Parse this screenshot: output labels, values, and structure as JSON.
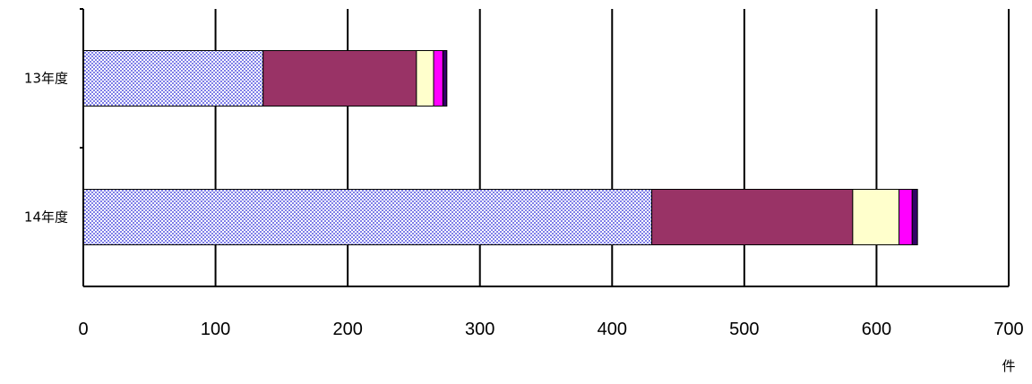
{
  "chart_data": {
    "type": "bar",
    "orientation": "horizontal",
    "stacked": true,
    "categories": [
      "13年度",
      "14年度"
    ],
    "series": [
      {
        "values": [
          136,
          430
        ],
        "color": "#9999ff",
        "pattern": "checker"
      },
      {
        "values": [
          116,
          152
        ],
        "color": "#993366"
      },
      {
        "values": [
          13,
          35
        ],
        "color": "#ffffcc"
      },
      {
        "values": [
          7,
          10
        ],
        "color": "#ff00ff"
      },
      {
        "values": [
          3,
          4
        ],
        "color": "#330066"
      }
    ],
    "xlim": [
      0,
      700
    ],
    "x_ticks": [
      "0",
      "100",
      "200",
      "300",
      "400",
      "500",
      "600",
      "700"
    ],
    "xlabel": "件",
    "grid": true,
    "legend": false
  }
}
